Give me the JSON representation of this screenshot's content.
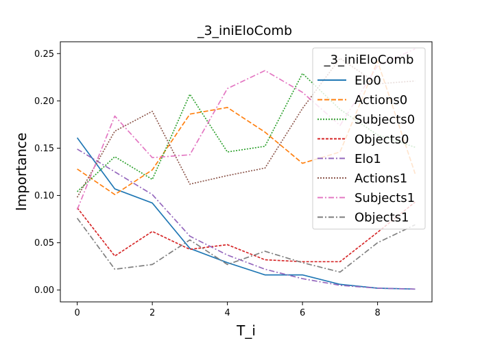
{
  "chart_data": {
    "type": "line",
    "title": "_3_iniEloComb",
    "xlabel": "T_i",
    "ylabel": "Importance",
    "xlim": [
      -0.45,
      9.45
    ],
    "ylim": [
      -0.0125,
      0.2625
    ],
    "x": [
      0,
      1,
      2,
      3,
      4,
      5,
      6,
      7,
      8,
      9
    ],
    "xticks": [
      0,
      2,
      4,
      6,
      8
    ],
    "xtick_labels": [
      "0",
      "2",
      "4",
      "6",
      "8"
    ],
    "yticks": [
      0.0,
      0.05,
      0.1,
      0.15,
      0.2,
      0.25
    ],
    "ytick_labels": [
      "0.00",
      "0.05",
      "0.10",
      "0.15",
      "0.20",
      "0.25"
    ],
    "grid": false,
    "legend": {
      "title": "_3_iniEloComb",
      "placement": "top-right"
    },
    "series": [
      {
        "name": "Elo0",
        "color": "#1f77b4",
        "dash": "solid",
        "values": [
          0.161,
          0.107,
          0.092,
          0.044,
          0.029,
          0.016,
          0.016,
          0.006,
          0.002,
          0.001
        ]
      },
      {
        "name": "Actions0",
        "color": "#ff7f0e",
        "dash": "dashed",
        "values": [
          0.128,
          0.101,
          0.127,
          0.186,
          0.193,
          0.167,
          0.134,
          0.146,
          0.242,
          0.123
        ]
      },
      {
        "name": "Subjects0",
        "color": "#2ca02c",
        "dash": "dotted",
        "values": [
          0.104,
          0.141,
          0.117,
          0.207,
          0.146,
          0.152,
          0.229,
          0.191,
          0.164,
          0.151
        ]
      },
      {
        "name": "Objects0",
        "color": "#d62728",
        "dash": "dashed-short",
        "values": [
          0.087,
          0.036,
          0.062,
          0.043,
          0.048,
          0.032,
          0.03,
          0.03,
          0.061,
          0.093
        ]
      },
      {
        "name": "Elo1",
        "color": "#9467bd",
        "dash": "dashdot",
        "values": [
          0.149,
          0.125,
          0.101,
          0.057,
          0.037,
          0.022,
          0.012,
          0.005,
          0.002,
          0.001
        ]
      },
      {
        "name": "Actions1",
        "color": "#8c564b",
        "dash": "dotted",
        "values": [
          0.098,
          0.168,
          0.189,
          0.112,
          0.121,
          0.129,
          0.192,
          0.245,
          0.218,
          0.221
        ]
      },
      {
        "name": "Subjects1",
        "color": "#e377c2",
        "dash": "dashdot",
        "values": [
          0.085,
          0.184,
          0.14,
          0.143,
          0.213,
          0.232,
          0.209,
          0.174,
          0.237,
          0.255
        ]
      },
      {
        "name": "Objects1",
        "color": "#7f7f7f",
        "dash": "dashdot",
        "values": [
          0.076,
          0.022,
          0.027,
          0.053,
          0.027,
          0.041,
          0.029,
          0.019,
          0.05,
          0.069
        ]
      }
    ]
  }
}
